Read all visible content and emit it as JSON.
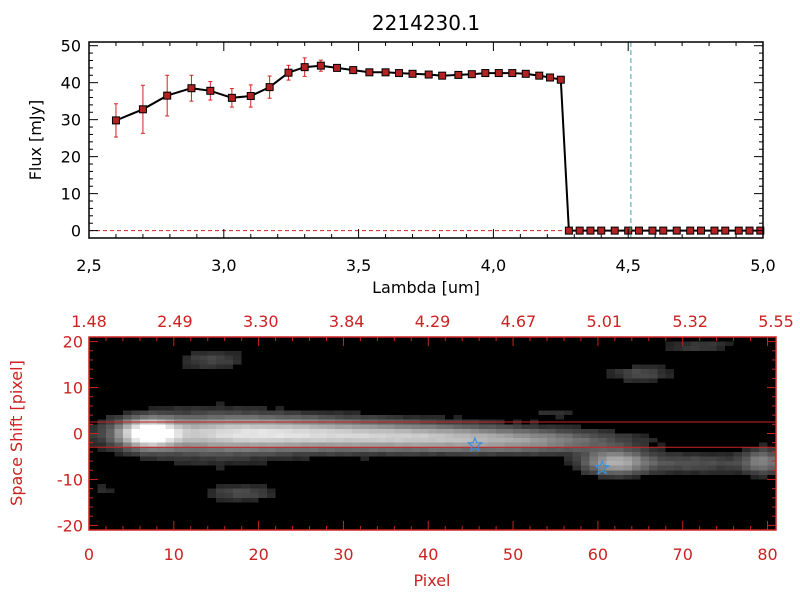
{
  "colors": {
    "line": "#000000",
    "marker": "#b22222",
    "error_bar": "#d42020",
    "red_axis": "#cc2222",
    "cutoff_line": "#3aa6a6",
    "star": "#3a8fe0",
    "image_bg": "#000000"
  },
  "chart_data": [
    {
      "type": "line",
      "title": "2214230.1",
      "xlabel": "Lambda [um]",
      "ylabel": "Flux [mJy]",
      "xlim": [
        2.5,
        5.0
      ],
      "ylim": [
        -2,
        51
      ],
      "xticks": [
        "2.5",
        "3.0",
        "3.5",
        "4.0",
        "4.5",
        "5.0"
      ],
      "yticks": [
        "0",
        "10",
        "20",
        "30",
        "40",
        "50"
      ],
      "vertical_marker_x": 4.51,
      "series": [
        {
          "x": [
            2.6,
            2.7,
            2.79,
            2.88,
            2.95,
            3.03,
            3.1,
            3.17,
            3.24,
            3.3,
            3.36,
            3.42,
            3.48,
            3.54,
            3.6,
            3.65,
            3.7,
            3.76,
            3.81,
            3.87,
            3.92,
            3.97,
            4.02,
            4.07,
            4.12,
            4.17,
            4.21,
            4.25,
            4.28,
            4.32,
            4.36,
            4.4,
            4.45,
            4.5,
            4.54,
            4.59,
            4.63,
            4.68,
            4.73,
            4.77,
            4.82,
            4.86,
            4.91,
            4.95,
            4.99
          ],
          "y": [
            29.8,
            32.8,
            36.5,
            38.5,
            37.8,
            35.9,
            36.4,
            38.8,
            42.7,
            44.2,
            44.6,
            44.0,
            43.4,
            42.8,
            42.8,
            42.6,
            42.4,
            42.2,
            41.9,
            42.1,
            42.3,
            42.6,
            42.6,
            42.6,
            42.4,
            41.9,
            41.4,
            40.8,
            0,
            0,
            0,
            0,
            0,
            0,
            0,
            0,
            0,
            0,
            0,
            0,
            0,
            0,
            0,
            0,
            0
          ],
          "yerr": [
            4.5,
            6.5,
            5.5,
            3.5,
            2.5,
            2.5,
            3.0,
            3.0,
            2.0,
            2.5,
            1.5,
            0.8,
            0.5,
            0.5,
            0.5,
            0.5,
            0.5,
            0.5,
            0.5,
            0.5,
            0.5,
            0.5,
            0.5,
            0.5,
            0.5,
            0.5,
            0.5,
            0.5,
            0,
            0,
            0,
            0,
            0,
            0,
            0,
            0,
            0,
            0,
            0,
            0,
            0,
            0,
            0,
            0,
            0
          ]
        }
      ]
    },
    {
      "type": "heatmap",
      "xlabel": "Pixel",
      "ylabel": "Space Shift [pixel]",
      "xlim": [
        0,
        81
      ],
      "ylim": [
        -21,
        21
      ],
      "xticks": [
        "0",
        "10",
        "20",
        "30",
        "40",
        "50",
        "60",
        "70",
        "80"
      ],
      "yticks": [
        "-20",
        "-10",
        "0",
        "10",
        "20"
      ],
      "top_ticks": [
        "1.48",
        "2.49",
        "3.30",
        "3.84",
        "4.29",
        "4.67",
        "5.01",
        "5.32",
        "5.55"
      ],
      "aperture_lines_y": [
        2.5,
        -3.0
      ],
      "stars": [
        {
          "x": 45.5,
          "y": -2.5
        },
        {
          "x": 60.5,
          "y": -7.5
        }
      ],
      "sources": [
        {
          "x": 7.0,
          "y": 0.0,
          "sx": 2.2,
          "sy": 2.0,
          "amp": 1.0
        },
        {
          "x": 20.0,
          "y": 0.0,
          "sx": 10.0,
          "sy": 2.4,
          "amp": 0.72
        },
        {
          "x": 38.0,
          "y": -0.8,
          "sx": 9.0,
          "sy": 2.0,
          "amp": 0.55
        },
        {
          "x": 52.0,
          "y": -1.8,
          "sx": 8.0,
          "sy": 1.7,
          "amp": 0.38
        },
        {
          "x": 14.0,
          "y": -1.0,
          "sx": 6.0,
          "sy": 4.8,
          "amp": 0.15
        },
        {
          "x": 62.0,
          "y": -6.3,
          "sx": 2.6,
          "sy": 1.8,
          "amp": 0.55
        },
        {
          "x": 71.0,
          "y": -6.5,
          "sx": 6.0,
          "sy": 1.5,
          "amp": 0.22
        },
        {
          "x": 79.5,
          "y": -6.0,
          "sx": 1.6,
          "sy": 2.0,
          "amp": 0.35
        },
        {
          "x": 14.5,
          "y": 16.0,
          "sx": 2.8,
          "sy": 1.6,
          "amp": 0.18
        },
        {
          "x": 65.0,
          "y": 13.0,
          "sx": 2.6,
          "sy": 1.3,
          "amp": 0.2
        },
        {
          "x": 72.0,
          "y": 19.0,
          "sx": 3.0,
          "sy": 1.0,
          "amp": 0.15
        },
        {
          "x": 18.0,
          "y": -13.0,
          "sx": 3.0,
          "sy": 1.2,
          "amp": 0.2
        },
        {
          "x": 2.0,
          "y": -12.0,
          "sx": 1.2,
          "sy": 1.0,
          "amp": 0.1
        },
        {
          "x": 55.0,
          "y": 4.5,
          "sx": 3.0,
          "sy": 1.0,
          "amp": 0.1
        }
      ]
    }
  ]
}
